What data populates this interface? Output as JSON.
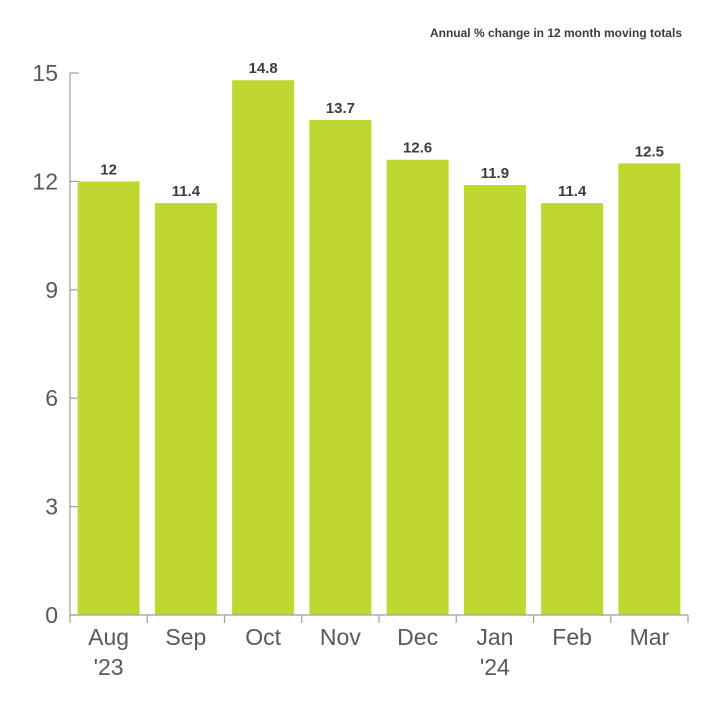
{
  "chart_data": {
    "type": "bar",
    "subtitle": "Annual % change in 12 month moving totals",
    "categories": [
      [
        "Aug",
        "'23"
      ],
      [
        "Sep"
      ],
      [
        "Oct"
      ],
      [
        "Nov"
      ],
      [
        "Dec"
      ],
      [
        "Jan",
        "'24"
      ],
      [
        "Feb"
      ],
      [
        "Mar"
      ]
    ],
    "values": [
      12,
      11.4,
      14.8,
      13.7,
      12.6,
      11.9,
      11.4,
      12.5
    ],
    "data_labels": [
      "12",
      "11.4",
      "14.8",
      "13.7",
      "12.6",
      "11.9",
      "11.4",
      "12.5"
    ],
    "yticks": [
      0,
      3,
      6,
      9,
      12,
      15
    ],
    "ylim": [
      0,
      15
    ],
    "bar_color": "#bfd730",
    "axis_color": "#9d9fa2",
    "grid": false,
    "legend": "none"
  }
}
